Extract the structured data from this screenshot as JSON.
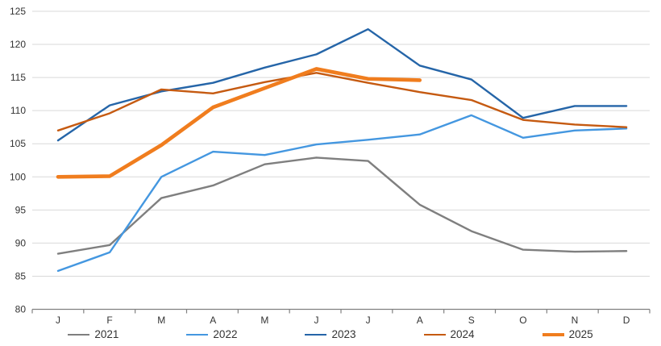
{
  "chart_data": {
    "type": "line",
    "title": "",
    "xlabel": "",
    "ylabel": "",
    "x": [
      "J",
      "F",
      "M",
      "A",
      "M",
      "J",
      "J",
      "A",
      "S",
      "O",
      "N",
      "D"
    ],
    "y_ticks": [
      80,
      85,
      90,
      95,
      100,
      105,
      110,
      115,
      120,
      125
    ],
    "ylim": [
      80,
      125
    ],
    "grid": "horizontal",
    "grid_color": "#D9D9D9",
    "axis_color": "#808080",
    "label_color": "#333333",
    "background": "#FFFFFF",
    "legend_position": "bottom",
    "series": [
      {
        "name": "2021",
        "color": "#7F7F7F",
        "width": 2.4,
        "values": [
          88.4,
          89.7,
          96.8,
          98.7,
          101.9,
          102.9,
          102.4,
          95.8,
          91.8,
          89.0,
          88.7,
          88.8
        ]
      },
      {
        "name": "2022",
        "color": "#4497E0",
        "width": 2.4,
        "values": [
          85.8,
          88.6,
          100.0,
          103.8,
          103.3,
          104.9,
          105.6,
          106.4,
          109.3,
          105.9,
          107.0,
          107.3
        ]
      },
      {
        "name": "2023",
        "color": "#2565A8",
        "width": 2.4,
        "values": [
          105.5,
          110.8,
          112.9,
          114.2,
          116.5,
          118.5,
          122.3,
          116.8,
          114.7,
          108.9,
          110.7,
          110.7
        ]
      },
      {
        "name": "2024",
        "color": "#C55A11",
        "width": 2.4,
        "values": [
          107.0,
          109.6,
          113.2,
          112.6,
          114.3,
          115.7,
          114.2,
          112.8,
          111.6,
          108.6,
          107.9,
          107.5
        ]
      },
      {
        "name": "2025",
        "color": "#F07D1E",
        "width": 4.6,
        "values": [
          100.0,
          100.1,
          104.8,
          110.5,
          113.4,
          116.3,
          114.8,
          114.6
        ]
      }
    ]
  }
}
